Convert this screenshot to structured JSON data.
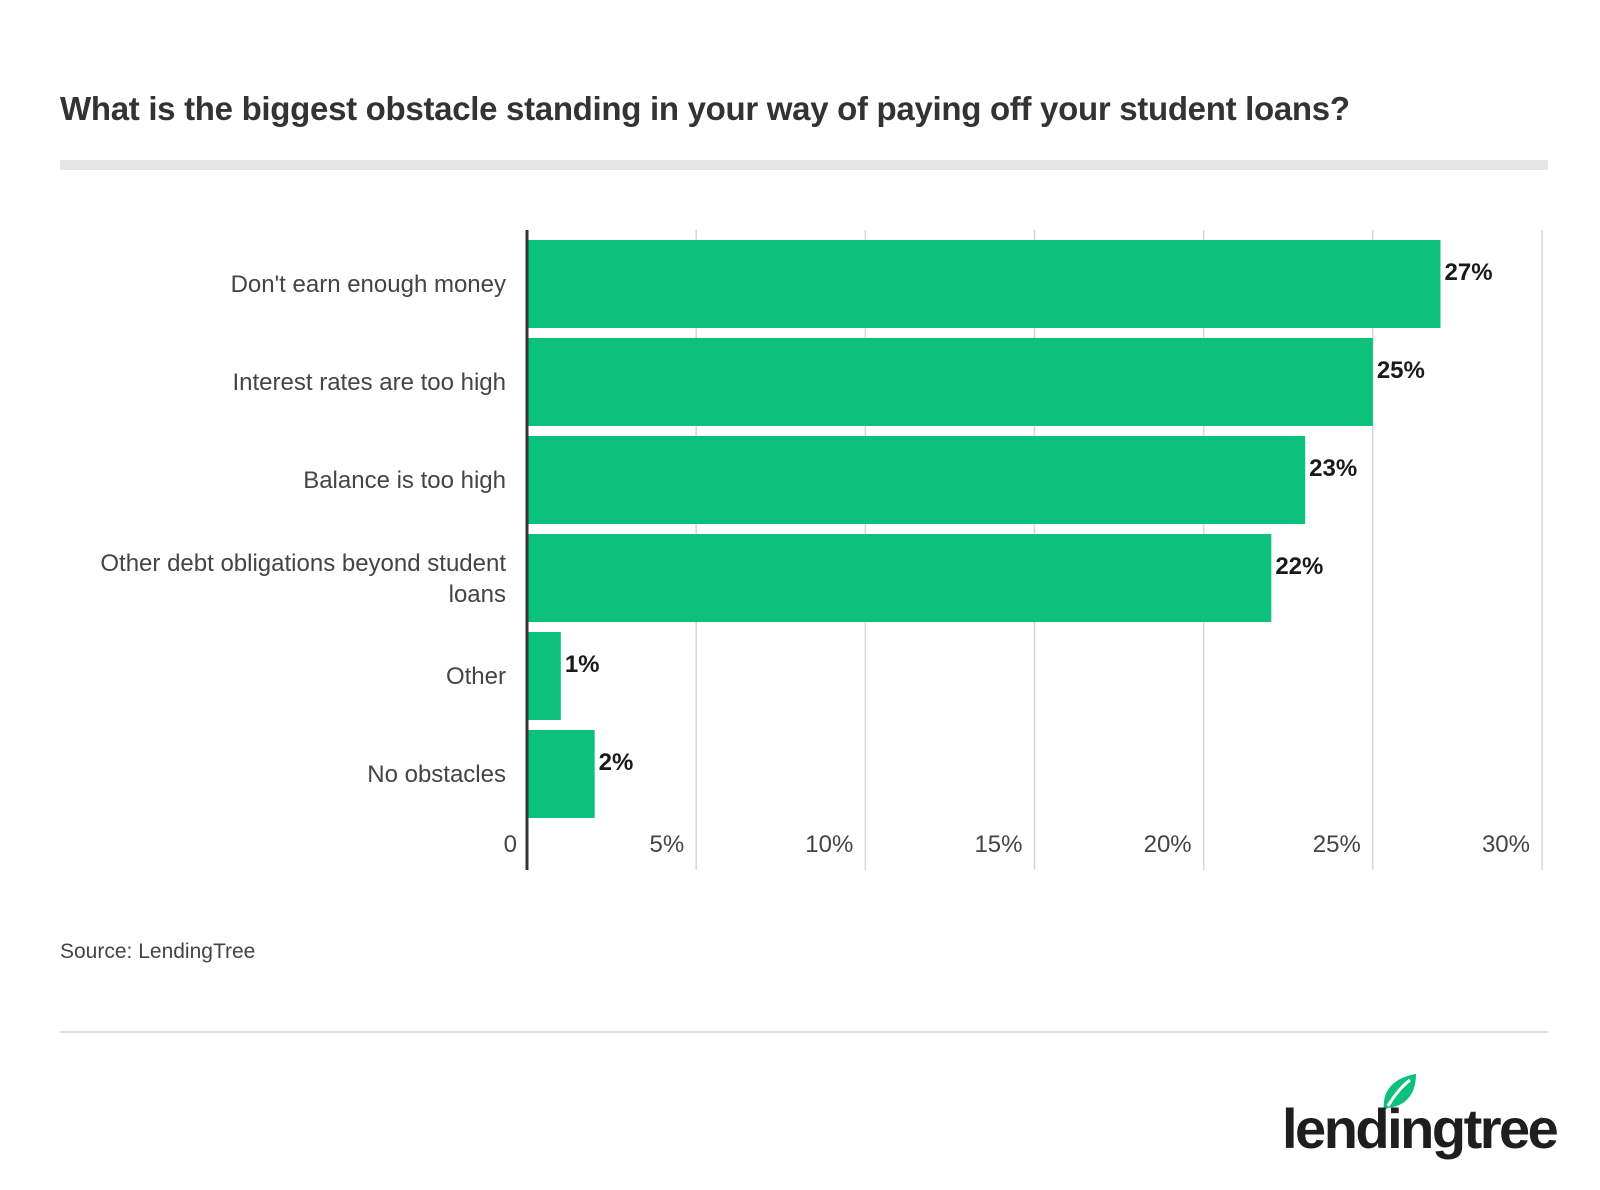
{
  "chart_data": {
    "type": "bar",
    "orientation": "horizontal",
    "title": "What is the biggest obstacle standing in your way of paying off your student loans?",
    "categories": [
      "Don't earn enough money",
      "Interest rates are too high",
      "Balance is too high",
      "Other debt obligations beyond student loans",
      "Other",
      "No obstacles"
    ],
    "values": [
      27,
      25,
      23,
      22,
      1,
      2
    ],
    "value_labels": [
      "27%",
      "25%",
      "23%",
      "22%",
      "1%",
      "2%"
    ],
    "xlim": [
      0,
      30
    ],
    "x_ticks": [
      0,
      5,
      10,
      15,
      20,
      25,
      30
    ],
    "x_tick_labels": [
      "0",
      "5%",
      "10%",
      "15%",
      "20%",
      "25%",
      "30%"
    ],
    "grid": true,
    "legend": "none",
    "bar_color": "#0cc17c"
  },
  "source": "Source: LendingTree",
  "logo": {
    "text": "lendingtree",
    "accent": "#0cc17c"
  }
}
